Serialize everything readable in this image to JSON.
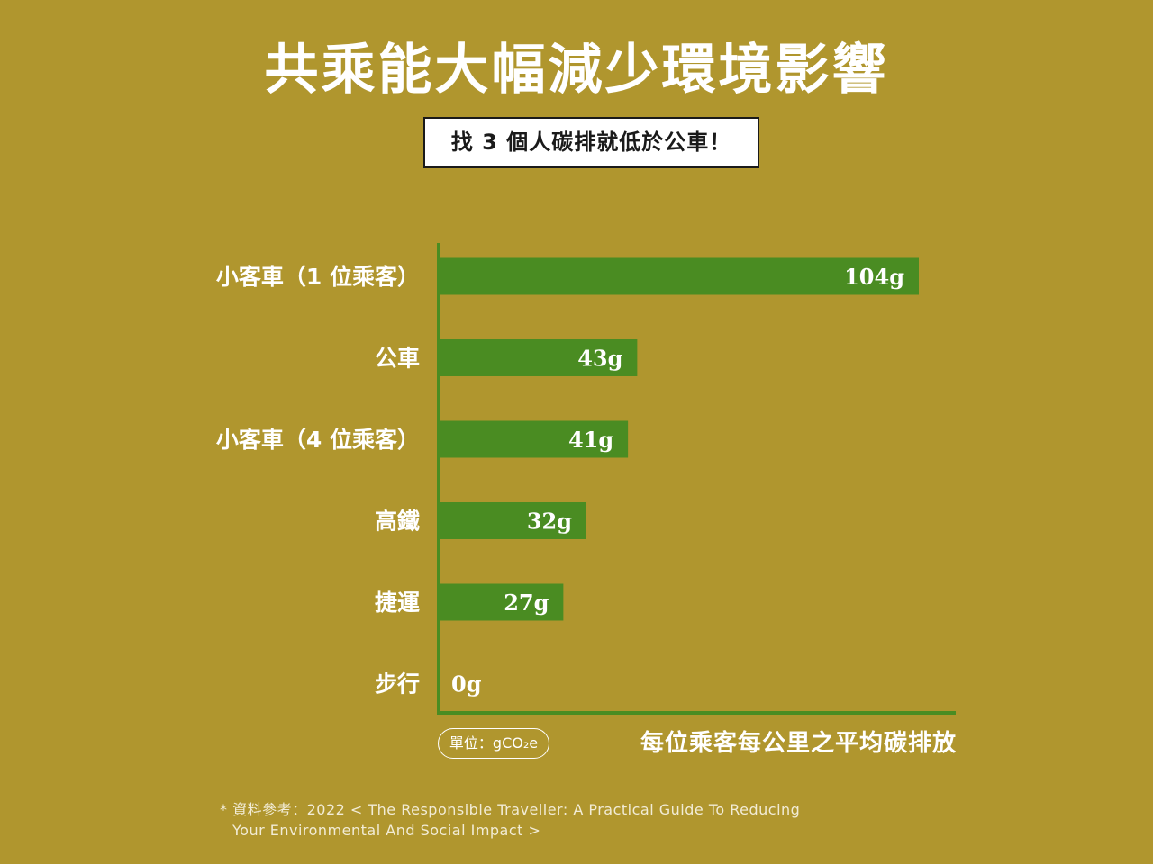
{
  "title": "共乘能大幅減少環境影響",
  "subtitle": "找 3 個人碳排就低於公車！",
  "unit_label": "單位：gCO₂e",
  "colors": {
    "background": "#b0962e",
    "bar": "#4a8c22",
    "axis": "#4a8c22",
    "text": "#ffffff"
  },
  "chart_data": {
    "type": "bar",
    "orientation": "horizontal",
    "categories": [
      "小客車（1 位乘客）",
      "公車",
      "小客車（4 位乘客）",
      "高鐵",
      "捷運",
      "步行"
    ],
    "values": [
      104,
      43,
      41,
      32,
      27,
      0
    ],
    "value_labels": [
      "104g",
      "43g",
      "41g",
      "32g",
      "27g",
      "0g"
    ],
    "xlabel": "每位乘客每公里之平均碳排放",
    "ylabel": "",
    "xlim": [
      0,
      104
    ],
    "grid": false
  },
  "source": {
    "line1": "* 資料參考：2022 < The Responsible Traveller: A Practical Guide To Reducing",
    "line2": "Your Environmental And Social Impact >"
  }
}
